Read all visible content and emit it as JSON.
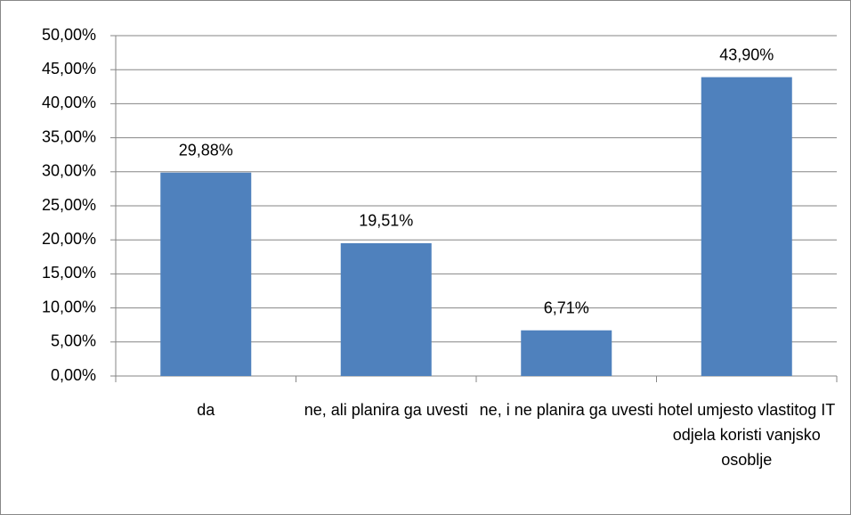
{
  "chart_data": {
    "type": "bar",
    "categories": [
      "da",
      "ne, ali planira ga uvesti",
      "ne, i ne planira ga uvesti",
      "hotel umjesto vlastitog IT odjela koristi vanjsko osoblje"
    ],
    "values": [
      29.88,
      19.51,
      6.71,
      43.9
    ],
    "value_labels": [
      "29,88%",
      "19,51%",
      "6,71%",
      "43,90%"
    ],
    "color": "#4f81bd",
    "ylim": [
      0,
      50
    ],
    "yticks": [
      {
        "value": 0,
        "label": "0,00%"
      },
      {
        "value": 5,
        "label": "5,00%"
      },
      {
        "value": 10,
        "label": "10,00%"
      },
      {
        "value": 15,
        "label": "15,00%"
      },
      {
        "value": 20,
        "label": "20,00%"
      },
      {
        "value": 25,
        "label": "25,00%"
      },
      {
        "value": 30,
        "label": "30,00%"
      },
      {
        "value": 35,
        "label": "35,00%"
      },
      {
        "value": 40,
        "label": "40,00%"
      },
      {
        "value": 45,
        "label": "45,00%"
      },
      {
        "value": 50,
        "label": "50,00%"
      }
    ],
    "grid": true
  }
}
